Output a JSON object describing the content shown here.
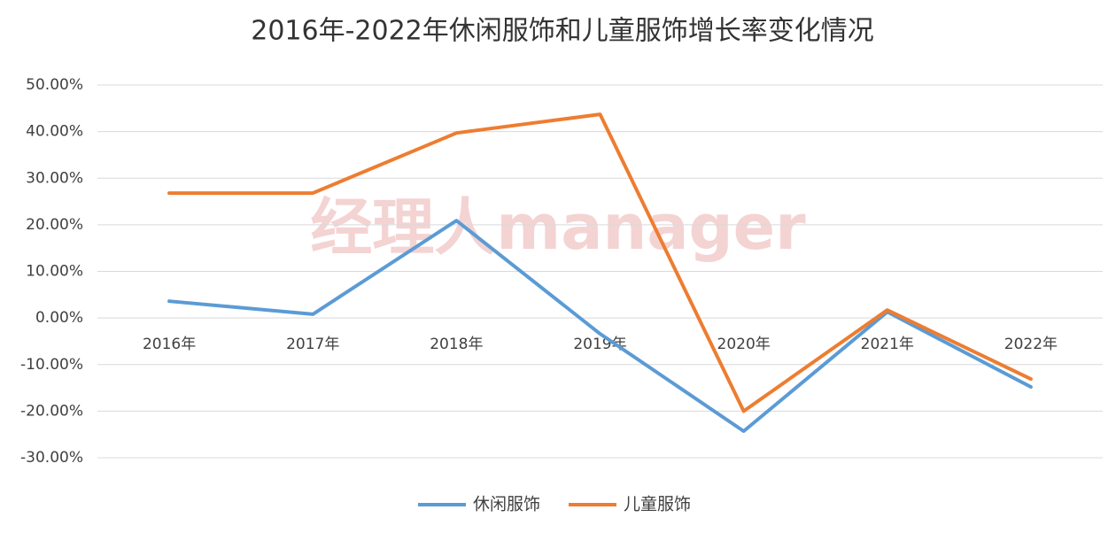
{
  "chart_data": {
    "type": "line",
    "title": "2016年-2022年休闲服饰和儿童服饰增长率变化情况",
    "watermark": "经理人manager",
    "categories": [
      "2016年",
      "2017年",
      "2018年",
      "2019年",
      "2020年",
      "2021年",
      "2022年"
    ],
    "series": [
      {
        "name": "休闲服饰",
        "color": "#5b9bd5",
        "values": [
          3.6,
          0.8,
          20.9,
          -3.4,
          -24.3,
          1.3,
          -14.8
        ]
      },
      {
        "name": "儿童服饰",
        "color": "#ed7d31",
        "values": [
          26.8,
          26.8,
          39.7,
          43.7,
          -20.0,
          1.7,
          -13.1
        ]
      }
    ],
    "ylim": [
      -30,
      50
    ],
    "yticks": [
      {
        "value": -30,
        "label": "-30.00%"
      },
      {
        "value": -20,
        "label": "-20.00%"
      },
      {
        "value": -10,
        "label": "-10.00%"
      },
      {
        "value": 0,
        "label": "0.00%"
      },
      {
        "value": 10,
        "label": "10.00%"
      },
      {
        "value": 20,
        "label": "20.00%"
      },
      {
        "value": 30,
        "label": "30.00%"
      },
      {
        "value": 40,
        "label": "40.00%"
      },
      {
        "value": 50,
        "label": "50.00%"
      }
    ],
    "grid": true,
    "legend": "bottom"
  }
}
